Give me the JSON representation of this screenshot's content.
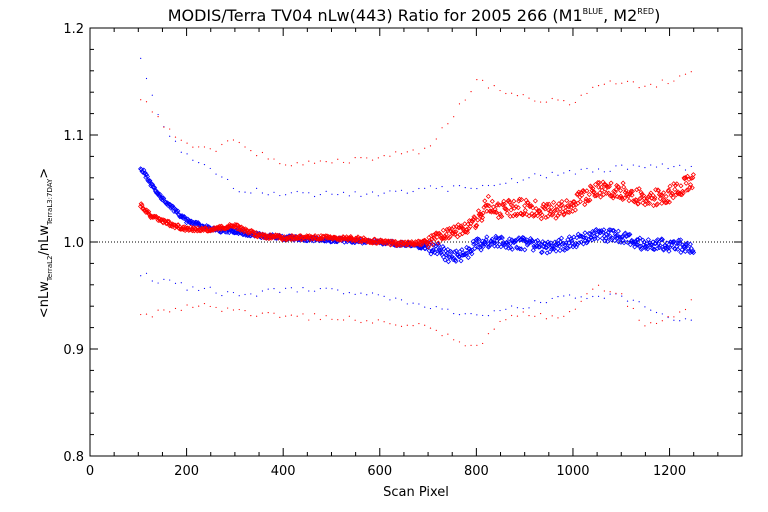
{
  "chart_data": {
    "type": "scatter",
    "title": {
      "main": "MODIS/Terra TV04 nLw(443) Ratio for 2005 266 (M1",
      "sup1": "BLUE",
      "mid": ", M2",
      "sup2": "RED",
      "end": ")"
    },
    "xlabel": "Scan Pixel",
    "ylabel": {
      "pre": "<nLw",
      "sub1": "TerraL2",
      "mid": "/nLw",
      "sub2": "TerraL3:7DAY",
      "post": ">"
    },
    "xlim": [
      0,
      1350
    ],
    "ylim": [
      0.8,
      1.2
    ],
    "xticks": [
      0,
      200,
      400,
      600,
      800,
      1000,
      1200
    ],
    "xtick_labels": [
      "0",
      "200",
      "400",
      "600",
      "800",
      "1000",
      "1200"
    ],
    "yticks": [
      0.8,
      0.9,
      1.0,
      1.1,
      1.2
    ],
    "ytick_labels": [
      "0.8",
      "0.9",
      "1.0",
      "1.1",
      "1.2"
    ],
    "reference_line": 1.0,
    "series": [
      {
        "color": "#0000ff",
        "role": "mean",
        "x": [
          105,
          125,
          150,
          175,
          200,
          250,
          300,
          350,
          400,
          450,
          500,
          550,
          600,
          650,
          700,
          720,
          750,
          780,
          800,
          850,
          900,
          950,
          1000,
          1050,
          1100,
          1150,
          1200,
          1250
        ],
        "y": [
          1.07,
          1.055,
          1.04,
          1.03,
          1.02,
          1.012,
          1.01,
          1.006,
          1.004,
          1.003,
          1.002,
          1.001,
          1.0,
          0.998,
          0.995,
          0.993,
          0.985,
          0.99,
          0.998,
          1.0,
          0.998,
          0.995,
          1.0,
          1.008,
          1.004,
          0.998,
          0.997,
          0.995
        ]
      },
      {
        "color": "#ff0000",
        "role": "mean",
        "x": [
          105,
          125,
          150,
          175,
          200,
          250,
          300,
          350,
          400,
          450,
          500,
          550,
          600,
          650,
          700,
          720,
          750,
          780,
          800,
          825,
          850,
          900,
          950,
          1000,
          1050,
          1100,
          1150,
          1200,
          1250
        ],
        "y": [
          1.035,
          1.025,
          1.02,
          1.015,
          1.012,
          1.012,
          1.015,
          1.006,
          1.004,
          1.004,
          1.004,
          1.003,
          1.0,
          0.998,
          1.0,
          1.003,
          1.01,
          1.012,
          1.02,
          1.035,
          1.03,
          1.033,
          1.028,
          1.035,
          1.05,
          1.048,
          1.04,
          1.045,
          1.058
        ]
      },
      {
        "color": "#0000ff",
        "role": "upper-spread",
        "x": [
          105,
          150,
          200,
          250,
          300,
          400,
          500,
          600,
          700,
          800,
          900,
          1000,
          1100,
          1200,
          1250
        ],
        "y": [
          1.17,
          1.11,
          1.08,
          1.07,
          1.05,
          1.045,
          1.045,
          1.045,
          1.05,
          1.05,
          1.06,
          1.065,
          1.07,
          1.07,
          1.07
        ]
      },
      {
        "color": "#0000ff",
        "role": "lower-spread",
        "x": [
          105,
          150,
          200,
          250,
          300,
          400,
          500,
          600,
          700,
          800,
          900,
          1000,
          1100,
          1200,
          1250
        ],
        "y": [
          0.97,
          0.963,
          0.958,
          0.955,
          0.95,
          0.955,
          0.955,
          0.95,
          0.94,
          0.93,
          0.94,
          0.95,
          0.95,
          0.93,
          0.925
        ]
      },
      {
        "color": "#ff0000",
        "role": "upper-spread",
        "x": [
          105,
          150,
          200,
          250,
          300,
          400,
          500,
          600,
          700,
          800,
          900,
          1000,
          1050,
          1100,
          1150,
          1200,
          1250
        ],
        "y": [
          1.135,
          1.11,
          1.09,
          1.085,
          1.095,
          1.07,
          1.075,
          1.08,
          1.085,
          1.15,
          1.135,
          1.13,
          1.145,
          1.15,
          1.145,
          1.15,
          1.16
        ]
      },
      {
        "color": "#ff0000",
        "role": "lower-spread",
        "x": [
          105,
          150,
          200,
          250,
          300,
          400,
          500,
          600,
          700,
          750,
          800,
          850,
          900,
          950,
          1000,
          1050,
          1100,
          1150,
          1200,
          1250
        ],
        "y": [
          0.93,
          0.935,
          0.94,
          0.94,
          0.935,
          0.93,
          0.93,
          0.925,
          0.92,
          0.91,
          0.9,
          0.925,
          0.935,
          0.93,
          0.935,
          0.96,
          0.95,
          0.92,
          0.93,
          0.945
        ]
      }
    ]
  }
}
